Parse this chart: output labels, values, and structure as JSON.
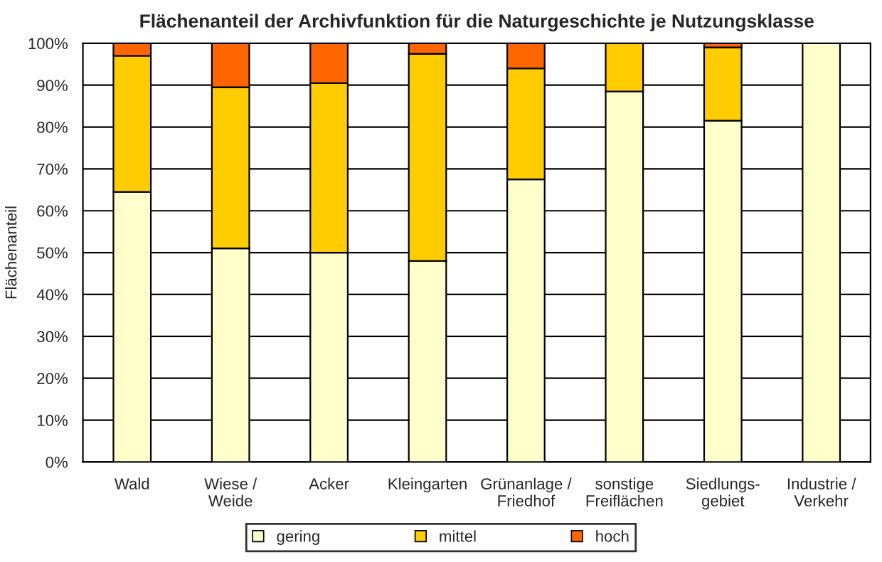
{
  "chart_data": {
    "type": "bar",
    "stacked": true,
    "title": "Flächenanteil der Archivfunktion für die Naturgeschichte je Nutzungsklasse",
    "ylabel": "Flächenanteil",
    "categories": [
      "Wald",
      "Wiese /\nWeide",
      "Acker",
      "Kleingarten",
      "Grünanlage /\nFriedhof",
      "sonstige\nFreiflächen",
      "Siedlungs-\ngebiet",
      "Industrie /\nVerkehr"
    ],
    "series": [
      {
        "name": "gering",
        "color": "#ffffcc",
        "values": [
          64.5,
          51,
          50,
          48,
          67.5,
          88.5,
          81.5,
          100
        ]
      },
      {
        "name": "mittel",
        "color": "#ffcc00",
        "values": [
          32.5,
          38.5,
          40.5,
          49.5,
          26.5,
          11.5,
          17.5,
          0
        ]
      },
      {
        "name": "hoch",
        "color": "#ff6600",
        "values": [
          3,
          10.5,
          9.5,
          2.5,
          6,
          0,
          1,
          0
        ]
      }
    ],
    "ylim": [
      0,
      100
    ],
    "yticks": [
      {
        "value": 0,
        "label": "0%"
      },
      {
        "value": 10,
        "label": "10%"
      },
      {
        "value": 20,
        "label": "20%"
      },
      {
        "value": 30,
        "label": "30%"
      },
      {
        "value": 40,
        "label": "40%"
      },
      {
        "value": 50,
        "label": "50%"
      },
      {
        "value": 60,
        "label": "60%"
      },
      {
        "value": 70,
        "label": "70%"
      },
      {
        "value": 80,
        "label": "80%"
      },
      {
        "value": 90,
        "label": "90%"
      },
      {
        "value": 100,
        "label": "100%"
      }
    ],
    "grid": "y",
    "legend": "bottom"
  }
}
